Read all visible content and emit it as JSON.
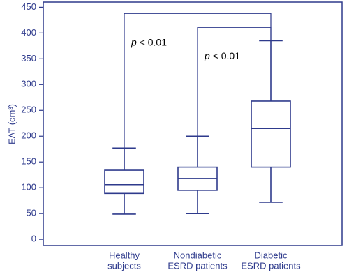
{
  "chart_data": {
    "type": "box",
    "y_label": "EAT (cm³)",
    "categories": [
      [
        "Healthy",
        "subjects"
      ],
      [
        "Nondiabetic",
        "ESRD patients"
      ],
      [
        "Diabetic",
        "ESRD patients"
      ]
    ],
    "boxes": [
      {
        "whislo": 49,
        "q1": 89,
        "med": 106,
        "q3": 134,
        "whishi": 177
      },
      {
        "whislo": 50,
        "q1": 95,
        "med": 118,
        "q3": 140,
        "whishi": 200
      },
      {
        "whislo": 72,
        "q1": 140,
        "med": 215,
        "q3": 268,
        "whishi": 385
      }
    ],
    "color": "#2e3a8c",
    "ylim": [
      -12,
      460
    ],
    "yticks": [
      0,
      50,
      100,
      150,
      200,
      250,
      300,
      350,
      400,
      450
    ],
    "comparisons": [
      {
        "from": 0,
        "to": 2,
        "y": 438,
        "symbol": "p",
        "text": "< 0.01"
      },
      {
        "from": 1,
        "to": 2,
        "y": 411,
        "symbol": "p",
        "text": "< 0.01"
      }
    ]
  }
}
